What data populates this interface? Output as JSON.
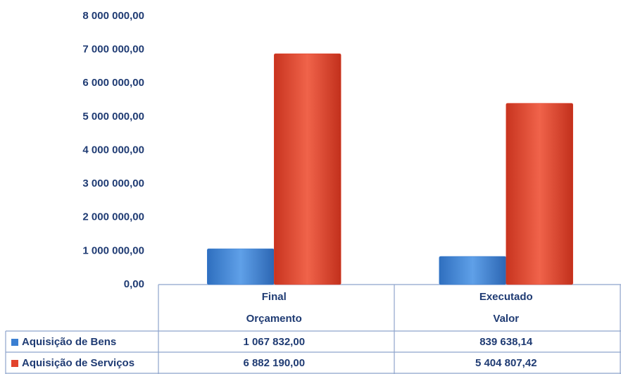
{
  "chart_data": {
    "type": "bar",
    "categories": [
      [
        "Final",
        "Orçamento"
      ],
      [
        "Executado",
        "Valor"
      ]
    ],
    "series": [
      {
        "name": "Aquisição de Bens",
        "color": "#3a7fd2",
        "values": [
          1067832.0,
          839638.14
        ],
        "value_labels": [
          "1 067 832,00",
          "839 638,14"
        ]
      },
      {
        "name": "Aquisição de Serviços",
        "color": "#e2432c",
        "values": [
          6882190.0,
          5404807.42
        ],
        "value_labels": [
          "6 882 190,00",
          "5 404 807,42"
        ]
      }
    ],
    "ylim": [
      0,
      8000000
    ],
    "yticks": [
      {
        "value": 0,
        "label": "0,00"
      },
      {
        "value": 1000000,
        "label": "1 000 000,00"
      },
      {
        "value": 2000000,
        "label": "2 000 000,00"
      },
      {
        "value": 3000000,
        "label": "3 000 000,00"
      },
      {
        "value": 4000000,
        "label": "4 000 000,00"
      },
      {
        "value": 5000000,
        "label": "5 000 000,00"
      },
      {
        "value": 6000000,
        "label": "6 000 000,00"
      },
      {
        "value": 7000000,
        "label": "7 000 000,00"
      },
      {
        "value": 8000000,
        "label": "8 000 000,00"
      }
    ],
    "grid": false
  }
}
